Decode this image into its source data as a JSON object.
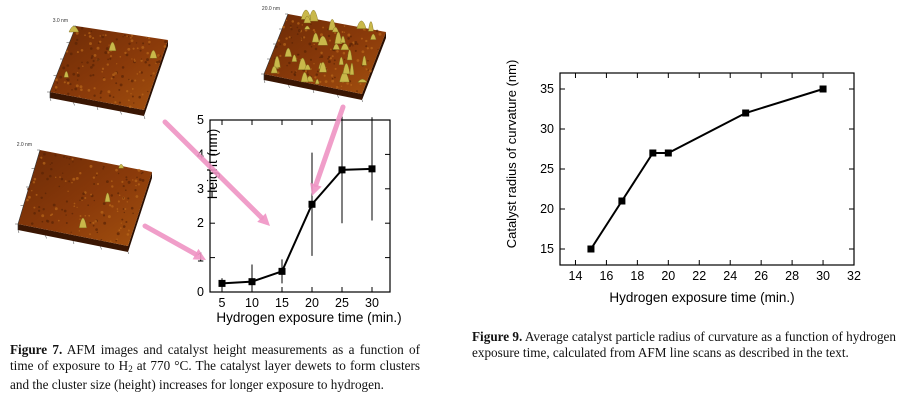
{
  "figure7": {
    "label": "Figure 7.",
    "caption_part1": " AFM images and catalyst height measurements as a function of time of exposure to H",
    "caption_sub": "2",
    "caption_part2": " at 770 °C. The catalyst layer dewets to form clusters and the cluster size (height) increases for longer exposure to hydrogen.",
    "afm_images": [
      {
        "id": "afm-smooth",
        "z_label": "3.0 nm"
      },
      {
        "id": "afm-clusters",
        "z_label": "20.0 nm"
      },
      {
        "id": "afm-initial",
        "z_label": "2.0 nm"
      }
    ]
  },
  "figure9": {
    "label": "Figure 9.",
    "caption_text": " Average catalyst particle radius of curvature as a function of hydrogen exposure time, calculated from AFM line scans as described in the text."
  },
  "colors": {
    "line": "#000000",
    "arrow": "#ef94c4",
    "afm_dark": "#4a1e05",
    "afm_light": "#d9a441"
  },
  "chart_data": [
    {
      "type": "line",
      "xlabel": "Hydrogen exposure time (min.)",
      "ylabel": "Height (nm)",
      "xlim": [
        3,
        33
      ],
      "ylim": [
        0,
        5
      ],
      "xticks": [
        5,
        10,
        15,
        20,
        25,
        30
      ],
      "yticks": [
        0,
        1,
        2,
        3,
        4,
        5
      ],
      "x": [
        5,
        10,
        15,
        20,
        25,
        30
      ],
      "y": [
        0.25,
        0.3,
        0.6,
        2.55,
        3.55,
        3.58
      ],
      "error": [
        0.15,
        0.5,
        0.35,
        1.5,
        1.55,
        1.5
      ],
      "grid": false,
      "legend": "none"
    },
    {
      "type": "line",
      "xlabel": "Hydrogen exposure time (min.)",
      "ylabel": "Catalyst radius of curvature (nm)",
      "xlim": [
        13,
        32
      ],
      "ylim": [
        13,
        37
      ],
      "xticks": [
        14,
        16,
        18,
        20,
        22,
        24,
        26,
        28,
        30,
        32
      ],
      "yticks": [
        15,
        20,
        25,
        30,
        35
      ],
      "x": [
        15,
        17,
        19,
        20,
        25,
        30
      ],
      "y": [
        15,
        21,
        27,
        27,
        32,
        35
      ],
      "grid": false,
      "legend": "none"
    }
  ]
}
